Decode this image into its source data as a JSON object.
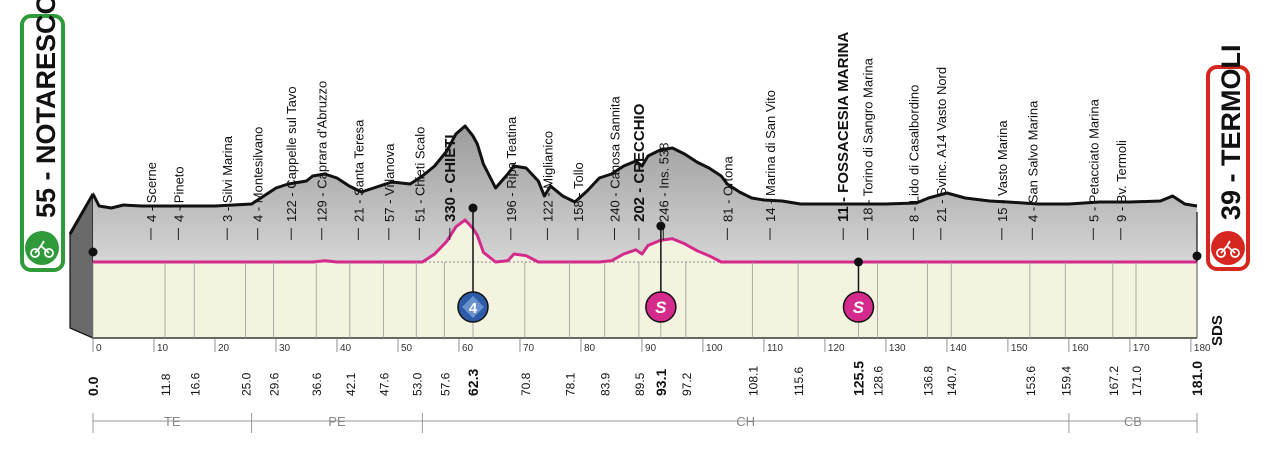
{
  "chart_data": {
    "type": "area",
    "title": "",
    "xlabel": "",
    "ylabel": "",
    "x_range": [
      0,
      181
    ],
    "x_ticks": [
      0,
      10,
      20,
      30,
      40,
      50,
      60,
      70,
      80,
      90,
      100,
      110,
      120,
      130,
      140,
      150,
      160,
      170,
      180
    ],
    "start": {
      "label": "55 - NOTARESCO",
      "km": 0
    },
    "finish": {
      "label": "39 - TERMOLI",
      "km": 181
    },
    "sds_label": "SDS",
    "elevation_profile": [
      [
        0,
        178
      ],
      [
        1,
        190
      ],
      [
        3,
        192
      ],
      [
        5,
        189
      ],
      [
        8,
        190
      ],
      [
        12,
        190
      ],
      [
        20,
        190
      ],
      [
        26,
        188
      ],
      [
        28,
        180
      ],
      [
        30,
        172
      ],
      [
        32,
        168
      ],
      [
        35,
        165
      ],
      [
        36,
        160
      ],
      [
        38,
        158
      ],
      [
        40,
        162
      ],
      [
        42,
        170
      ],
      [
        44,
        176
      ],
      [
        46,
        172
      ],
      [
        47,
        170
      ],
      [
        49,
        166
      ],
      [
        52,
        168
      ],
      [
        54,
        160
      ],
      [
        56,
        150
      ],
      [
        58,
        135
      ],
      [
        59.5,
        118
      ],
      [
        61,
        110
      ],
      [
        62.3,
        120
      ],
      [
        63,
        128
      ],
      [
        64,
        148
      ],
      [
        66,
        172
      ],
      [
        68,
        158
      ],
      [
        69,
        150
      ],
      [
        71,
        152
      ],
      [
        73,
        165
      ],
      [
        74,
        180
      ],
      [
        75,
        170
      ],
      [
        77,
        180
      ],
      [
        79,
        186
      ],
      [
        81,
        175
      ],
      [
        83,
        162
      ],
      [
        85,
        158
      ],
      [
        87,
        150
      ],
      [
        89,
        145
      ],
      [
        90,
        150
      ],
      [
        91,
        140
      ],
      [
        93,
        134
      ],
      [
        95,
        132
      ],
      [
        97,
        138
      ],
      [
        99,
        146
      ],
      [
        101,
        152
      ],
      [
        103,
        160
      ],
      [
        104,
        168
      ],
      [
        106,
        176
      ],
      [
        108,
        182
      ],
      [
        110,
        184
      ],
      [
        113,
        185
      ],
      [
        116,
        188
      ],
      [
        120,
        188
      ],
      [
        125,
        188
      ],
      [
        127,
        188
      ],
      [
        130,
        188
      ],
      [
        135,
        187
      ],
      [
        137,
        182
      ],
      [
        140,
        177
      ],
      [
        143,
        182
      ],
      [
        147,
        185
      ],
      [
        150,
        186
      ],
      [
        155,
        188
      ],
      [
        160,
        188
      ],
      [
        165,
        186
      ],
      [
        170,
        186
      ],
      [
        175,
        185
      ],
      [
        177,
        180
      ],
      [
        179,
        188
      ],
      [
        181,
        190
      ]
    ],
    "series": [
      {
        "name": "",
        "color": "#d42a8c"
      }
    ],
    "x_labels": [
      {
        "label": "4 - Scerne",
        "km": 9.5
      },
      {
        "label": "4 - Pineto",
        "km": 14
      },
      {
        "label": "3 - Silvi Marina",
        "km": 22
      },
      {
        "label": "4 - Montesilvano",
        "km": 27
      },
      {
        "label": "122 - Cappelle sul Tavo",
        "km": 32.5
      },
      {
        "label": "129 - Caprara d'Abruzzo",
        "km": 37.5
      },
      {
        "label": "21 - Santa Teresa",
        "km": 43.5
      },
      {
        "label": "57 - Villanova",
        "km": 48.5
      },
      {
        "label": "51 - Chieti Scalo",
        "km": 53.5
      },
      {
        "label": "330 - CHIETI",
        "km": 58.5,
        "bold": true
      },
      {
        "label": "196 - Ripa Teatina",
        "km": 68.5
      },
      {
        "label": "122 - Miglianico",
        "km": 74.5
      },
      {
        "label": "158 - Tollo",
        "km": 79.5
      },
      {
        "label": "240 - Canosa Sannita",
        "km": 85.5
      },
      {
        "label": "202 - CRECCHIO",
        "km": 89.5,
        "bold": true
      },
      {
        "label": "246 - Ins. 538",
        "km": 93.5
      },
      {
        "label": "81 - Ortona",
        "km": 104
      },
      {
        "label": "14 - Marina di San Vito",
        "km": 111
      },
      {
        "label": "11 - FOSSACESIA MARINA",
        "km": 123,
        "bold": true
      },
      {
        "label": "18 - Torino di Sangro Marina",
        "km": 127
      },
      {
        "label": "8 - Lido di Casalbordino",
        "km": 134.5
      },
      {
        "label": "21 - Svinc. A14 Vasto Nord",
        "km": 139
      },
      {
        "label": "15 - Vasto Marina",
        "km": 149
      },
      {
        "label": "4 - San Salvo Marina",
        "km": 154
      },
      {
        "label": "5 - Petacciato Marina",
        "km": 164
      },
      {
        "label": "9 - Bv. Termoli",
        "km": 168.5
      }
    ],
    "km_labels": [
      {
        "label": "0.0",
        "km": 0,
        "bold": true
      },
      {
        "label": "11.8",
        "km": 11.8
      },
      {
        "label": "16.6",
        "km": 16.6
      },
      {
        "label": "25.0",
        "km": 25.0
      },
      {
        "label": "29.6",
        "km": 29.6
      },
      {
        "label": "36.6",
        "km": 36.6
      },
      {
        "label": "42.1",
        "km": 42.1
      },
      {
        "label": "47.6",
        "km": 47.6
      },
      {
        "label": "53.0",
        "km": 53.0
      },
      {
        "label": "57.6",
        "km": 57.6
      },
      {
        "label": "62.3",
        "km": 62.3,
        "bold": true
      },
      {
        "label": "70.8",
        "km": 70.8
      },
      {
        "label": "78.1",
        "km": 78.1
      },
      {
        "label": "83.9",
        "km": 83.9
      },
      {
        "label": "89.5",
        "km": 89.5
      },
      {
        "label": "93.1",
        "km": 93.1,
        "bold": true
      },
      {
        "label": "97.2",
        "km": 97.2
      },
      {
        "label": "108.1",
        "km": 108.1
      },
      {
        "label": "115.6",
        "km": 115.6
      },
      {
        "label": "125.5",
        "km": 125.5,
        "bold": true
      },
      {
        "label": "128.6",
        "km": 128.6
      },
      {
        "label": "136.8",
        "km": 136.8
      },
      {
        "label": "140.7",
        "km": 140.7
      },
      {
        "label": "153.6",
        "km": 153.6
      },
      {
        "label": "159.4",
        "km": 159.4
      },
      {
        "label": "167.2",
        "km": 167.2
      },
      {
        "label": "171.0",
        "km": 171.0
      },
      {
        "label": "181.0",
        "km": 181.0,
        "bold": true
      }
    ],
    "markers": [
      {
        "type": "climb",
        "label": "4",
        "km": 62.3,
        "color": "#2e5ba8"
      },
      {
        "type": "sprint",
        "label": "S",
        "km": 93.1,
        "color": "#d42a8c"
      },
      {
        "type": "sprint",
        "label": "S",
        "km": 125.5,
        "color": "#d42a8c"
      }
    ],
    "regions": [
      {
        "label": "TE",
        "from": 0,
        "to": 26
      },
      {
        "label": "PE",
        "from": 26,
        "to": 54
      },
      {
        "label": "CH",
        "from": 54,
        "to": 160
      },
      {
        "label": "CB",
        "from": 160,
        "to": 181
      }
    ],
    "colors": {
      "start_green": "#2f9a3a",
      "finish_red": "#d6261f",
      "climb_blue": "#2e5ba8",
      "sprint_pink": "#d42a8c",
      "terrain_grey": "#b7b7b7",
      "valley_cream": "#f4f3df"
    }
  }
}
